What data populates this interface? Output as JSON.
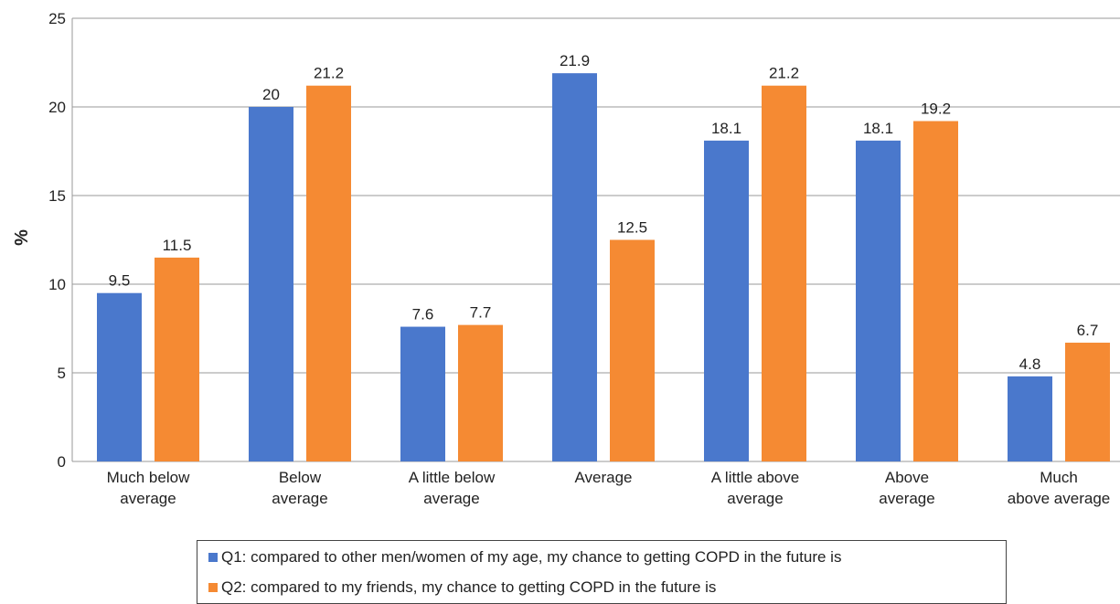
{
  "chart_data": {
    "type": "bar",
    "title": "",
    "xlabel": "",
    "ylabel": "%",
    "ylim": [
      0,
      25
    ],
    "yticks": [
      0,
      5,
      10,
      15,
      20,
      25
    ],
    "grid": true,
    "legend_position": "bottom",
    "categories": [
      [
        "Much below",
        "average"
      ],
      [
        "Below",
        "average"
      ],
      [
        "A little below",
        "average"
      ],
      [
        "Average"
      ],
      [
        "A little above",
        "average"
      ],
      [
        "Above",
        "average"
      ],
      [
        "Much",
        "above average"
      ]
    ],
    "series": [
      {
        "name": "Q1: compared to other men/women of my age, my chance to getting COPD in the future is",
        "color": "#4a78cc",
        "values": [
          9.5,
          20,
          7.6,
          21.9,
          18.1,
          18.1,
          4.8
        ],
        "labels": [
          "9.5",
          "20",
          "7.6",
          "21.9",
          "18.1",
          "18.1",
          "4.8"
        ]
      },
      {
        "name": "Q2: compared to my friends, my chance to getting COPD in the future is",
        "color": "#f58a33",
        "values": [
          11.5,
          21.2,
          7.7,
          12.5,
          21.2,
          19.2,
          6.7
        ],
        "labels": [
          "11.5",
          "21.2",
          "7.7",
          "12.5",
          "21.2",
          "19.2",
          "6.7"
        ]
      }
    ]
  }
}
